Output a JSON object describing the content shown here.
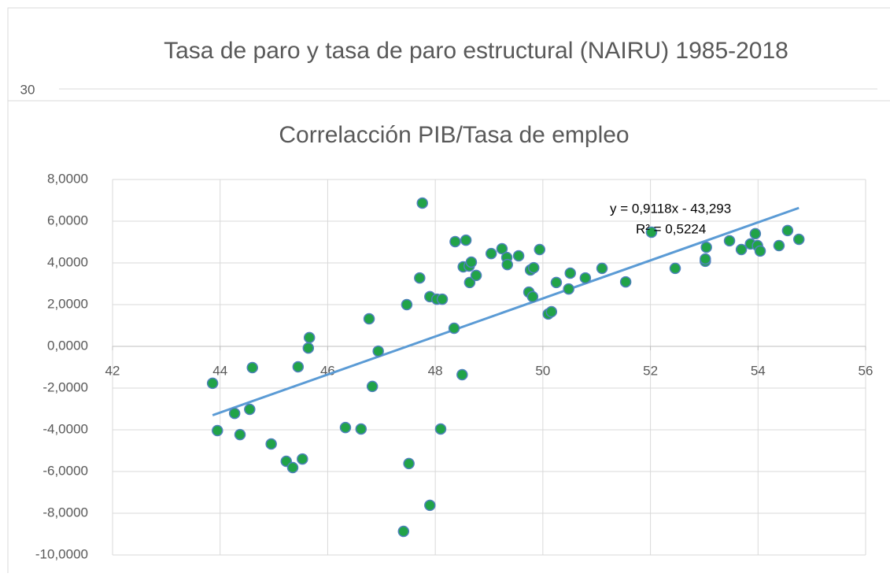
{
  "chart_data": [
    {
      "type": "line",
      "title": "Tasa de paro y tasa de paro estructural (NAIRU) 1985-2018",
      "yticks": [
        30
      ]
    },
    {
      "type": "scatter",
      "title": "Correlacción PIB/Tasa de empleo",
      "x": [
        43.86,
        43.95,
        44.27,
        44.37,
        44.55,
        44.6,
        44.95,
        45.23,
        45.35,
        45.45,
        45.53,
        45.64,
        45.66,
        46.33,
        46.62,
        46.77,
        46.83,
        46.94,
        47.41,
        47.47,
        47.51,
        47.71,
        47.76,
        47.9,
        47.9,
        48.03,
        48.13,
        48.1,
        48.35,
        48.37,
        48.5,
        48.52,
        48.57,
        48.63,
        48.64,
        48.67,
        48.76,
        49.04,
        49.24,
        49.33,
        49.34,
        49.55,
        49.74,
        49.77,
        49.81,
        49.83,
        49.94,
        50.1,
        50.16,
        50.25,
        50.48,
        50.51,
        50.79,
        51.1,
        51.54,
        52.02,
        52.46,
        53.02,
        53.02,
        53.04,
        53.47,
        53.69,
        53.86,
        53.95,
        53.99,
        54.04,
        54.39,
        54.55,
        54.76
      ],
      "values": [
        -1.77,
        -4.04,
        -3.21,
        -4.23,
        -3.02,
        -1.02,
        -4.68,
        -5.51,
        -5.81,
        -0.98,
        -5.4,
        -0.08,
        0.42,
        -3.89,
        -3.96,
        1.32,
        -1.92,
        -0.23,
        -8.87,
        2.0,
        -5.62,
        3.28,
        6.87,
        -7.62,
        2.38,
        2.26,
        2.26,
        -3.96,
        0.87,
        5.02,
        -1.36,
        3.81,
        5.09,
        3.85,
        3.06,
        4.04,
        3.4,
        4.45,
        4.68,
        4.26,
        3.92,
        4.34,
        2.6,
        3.66,
        2.38,
        3.77,
        4.64,
        1.55,
        1.66,
        3.06,
        2.75,
        3.51,
        3.28,
        3.74,
        3.09,
        5.47,
        3.74,
        4.08,
        4.19,
        4.75,
        5.06,
        4.64,
        4.91,
        5.4,
        4.83,
        4.57,
        4.83,
        5.55,
        5.13
      ],
      "color": "#21a348",
      "edge_color": "#4f81bd",
      "trendline": {
        "slope": 0.9118,
        "intercept": -43.293,
        "color": "#5b9bd5",
        "equation": "y = 0,9118x - 43,293",
        "r2": "R² = 0,5224"
      },
      "xlim": [
        42,
        56
      ],
      "xticks": [
        42,
        44,
        46,
        48,
        50,
        52,
        54,
        56
      ],
      "ylim": [
        -10,
        8
      ],
      "yticks": [
        {
          "value": -10,
          "label": "-10,0000"
        },
        {
          "value": -8,
          "label": "-8,0000"
        },
        {
          "value": -6,
          "label": "-6,0000"
        },
        {
          "value": -4,
          "label": "-4,0000"
        },
        {
          "value": -2,
          "label": "-2,0000"
        },
        {
          "value": 0,
          "label": "0,0000"
        },
        {
          "value": 2,
          "label": "2,0000"
        },
        {
          "value": 4,
          "label": "4,0000"
        },
        {
          "value": 6,
          "label": "6,0000"
        },
        {
          "value": 8,
          "label": "8,0000"
        }
      ],
      "grid": true
    }
  ]
}
